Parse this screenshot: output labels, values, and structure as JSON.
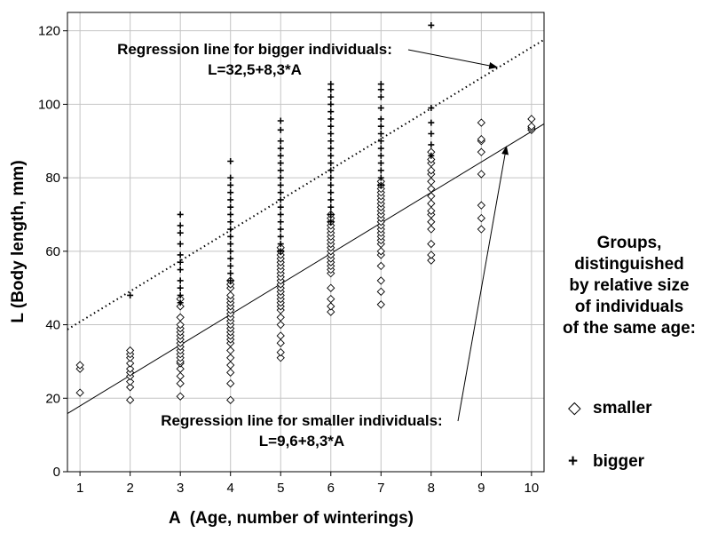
{
  "chart_data": {
    "type": "scatter",
    "xlabel_main": "A",
    "xlabel_rest": "(Age, number of winterings)",
    "ylabel": "L (Body length, mm)",
    "xlim": [
      0.75,
      10.25
    ],
    "ylim": [
      0,
      125
    ],
    "xticks": [
      1,
      2,
      3,
      4,
      5,
      6,
      7,
      8,
      9,
      10
    ],
    "yticks": [
      0,
      20,
      40,
      60,
      80,
      100,
      120
    ],
    "grid": true,
    "legend_placement": "right",
    "series": [
      {
        "name": "smaller",
        "marker": "diamond",
        "points": [
          [
            1,
            21.5
          ],
          [
            1,
            28
          ],
          [
            1,
            29
          ],
          [
            2,
            19.5
          ],
          [
            2,
            23
          ],
          [
            2,
            24.5
          ],
          [
            2,
            26
          ],
          [
            2,
            27
          ],
          [
            2,
            28
          ],
          [
            2,
            29.5
          ],
          [
            2,
            31
          ],
          [
            2,
            32
          ],
          [
            2,
            33
          ],
          [
            3,
            20.5
          ],
          [
            3,
            24
          ],
          [
            3,
            26
          ],
          [
            3,
            28
          ],
          [
            3,
            29.5
          ],
          [
            3,
            30
          ],
          [
            3,
            31
          ],
          [
            3,
            32
          ],
          [
            3,
            33
          ],
          [
            3,
            34
          ],
          [
            3,
            35
          ],
          [
            3,
            36
          ],
          [
            3,
            37
          ],
          [
            3,
            38
          ],
          [
            3,
            39
          ],
          [
            3,
            40
          ],
          [
            3,
            42
          ],
          [
            3,
            45
          ],
          [
            3,
            47
          ],
          [
            4,
            19.5
          ],
          [
            4,
            24
          ],
          [
            4,
            27
          ],
          [
            4,
            29
          ],
          [
            4,
            31
          ],
          [
            4,
            33
          ],
          [
            4,
            35
          ],
          [
            4,
            36
          ],
          [
            4,
            37
          ],
          [
            4,
            38
          ],
          [
            4,
            39
          ],
          [
            4,
            40
          ],
          [
            4,
            41
          ],
          [
            4,
            42
          ],
          [
            4,
            43
          ],
          [
            4,
            44
          ],
          [
            4,
            45
          ],
          [
            4,
            46
          ],
          [
            4,
            47
          ],
          [
            4,
            48
          ],
          [
            4,
            50
          ],
          [
            4,
            51
          ],
          [
            4,
            52
          ],
          [
            5,
            31
          ],
          [
            5,
            32.5
          ],
          [
            5,
            35
          ],
          [
            5,
            37
          ],
          [
            5,
            40
          ],
          [
            5,
            42
          ],
          [
            5,
            44
          ],
          [
            5,
            45
          ],
          [
            5,
            46
          ],
          [
            5,
            47
          ],
          [
            5,
            48
          ],
          [
            5,
            49
          ],
          [
            5,
            50
          ],
          [
            5,
            51
          ],
          [
            5,
            52
          ],
          [
            5,
            53
          ],
          [
            5,
            54
          ],
          [
            5,
            55
          ],
          [
            5,
            56
          ],
          [
            5,
            57
          ],
          [
            5,
            58
          ],
          [
            5,
            59
          ],
          [
            5,
            60
          ],
          [
            5,
            61
          ],
          [
            6,
            43.5
          ],
          [
            6,
            45
          ],
          [
            6,
            47
          ],
          [
            6,
            50
          ],
          [
            6,
            54
          ],
          [
            6,
            55
          ],
          [
            6,
            56
          ],
          [
            6,
            57
          ],
          [
            6,
            58
          ],
          [
            6,
            59
          ],
          [
            6,
            60
          ],
          [
            6,
            61
          ],
          [
            6,
            62
          ],
          [
            6,
            63
          ],
          [
            6,
            64
          ],
          [
            6,
            65
          ],
          [
            6,
            66
          ],
          [
            6,
            67
          ],
          [
            6,
            68
          ],
          [
            6,
            69
          ],
          [
            6,
            70
          ],
          [
            7,
            45.5
          ],
          [
            7,
            49
          ],
          [
            7,
            52
          ],
          [
            7,
            56
          ],
          [
            7,
            59
          ],
          [
            7,
            60
          ],
          [
            7,
            62
          ],
          [
            7,
            63
          ],
          [
            7,
            64
          ],
          [
            7,
            65
          ],
          [
            7,
            66
          ],
          [
            7,
            67
          ],
          [
            7,
            68
          ],
          [
            7,
            69
          ],
          [
            7,
            70
          ],
          [
            7,
            71
          ],
          [
            7,
            72
          ],
          [
            7,
            73
          ],
          [
            7,
            74
          ],
          [
            7,
            75
          ],
          [
            7,
            76
          ],
          [
            7,
            77
          ],
          [
            7,
            78
          ],
          [
            7,
            79
          ],
          [
            8,
            57.5
          ],
          [
            8,
            59
          ],
          [
            8,
            62
          ],
          [
            8,
            66
          ],
          [
            8,
            68
          ],
          [
            8,
            70
          ],
          [
            8,
            71
          ],
          [
            8,
            73
          ],
          [
            8,
            75
          ],
          [
            8,
            77
          ],
          [
            8,
            79
          ],
          [
            8,
            81
          ],
          [
            8,
            82
          ],
          [
            8,
            84
          ],
          [
            8,
            85
          ],
          [
            8,
            87
          ],
          [
            9,
            66
          ],
          [
            9,
            69
          ],
          [
            9,
            72.5
          ],
          [
            9,
            81
          ],
          [
            9,
            87
          ],
          [
            9,
            90
          ],
          [
            9,
            90.5
          ],
          [
            9,
            95
          ],
          [
            10,
            93
          ],
          [
            10,
            93.5
          ],
          [
            10,
            94
          ],
          [
            10,
            96
          ]
        ]
      },
      {
        "name": "bigger",
        "marker": "plus",
        "points": [
          [
            2,
            48
          ],
          [
            3,
            46
          ],
          [
            3,
            48
          ],
          [
            3,
            50
          ],
          [
            3,
            52
          ],
          [
            3,
            55
          ],
          [
            3,
            57
          ],
          [
            3,
            59
          ],
          [
            3,
            62
          ],
          [
            3,
            65
          ],
          [
            3,
            67
          ],
          [
            3,
            70
          ],
          [
            4,
            52
          ],
          [
            4,
            54
          ],
          [
            4,
            56
          ],
          [
            4,
            58
          ],
          [
            4,
            60
          ],
          [
            4,
            62
          ],
          [
            4,
            64
          ],
          [
            4,
            66
          ],
          [
            4,
            68
          ],
          [
            4,
            70
          ],
          [
            4,
            72
          ],
          [
            4,
            74
          ],
          [
            4,
            76
          ],
          [
            4,
            78
          ],
          [
            4,
            80
          ],
          [
            4,
            84.5
          ],
          [
            5,
            60
          ],
          [
            5,
            62
          ],
          [
            5,
            64
          ],
          [
            5,
            66
          ],
          [
            5,
            68
          ],
          [
            5,
            70
          ],
          [
            5,
            72
          ],
          [
            5,
            74
          ],
          [
            5,
            76
          ],
          [
            5,
            78
          ],
          [
            5,
            80
          ],
          [
            5,
            82
          ],
          [
            5,
            84
          ],
          [
            5,
            86
          ],
          [
            5,
            88
          ],
          [
            5,
            90
          ],
          [
            5,
            93
          ],
          [
            5,
            95.5
          ],
          [
            6,
            68
          ],
          [
            6,
            70
          ],
          [
            6,
            72
          ],
          [
            6,
            74
          ],
          [
            6,
            76
          ],
          [
            6,
            78
          ],
          [
            6,
            80
          ],
          [
            6,
            82
          ],
          [
            6,
            84
          ],
          [
            6,
            86
          ],
          [
            6,
            88
          ],
          [
            6,
            90
          ],
          [
            6,
            92
          ],
          [
            6,
            94
          ],
          [
            6,
            96
          ],
          [
            6,
            98
          ],
          [
            6,
            100
          ],
          [
            6,
            102
          ],
          [
            6,
            104
          ],
          [
            6,
            105.5
          ],
          [
            7,
            78
          ],
          [
            7,
            80
          ],
          [
            7,
            82
          ],
          [
            7,
            84
          ],
          [
            7,
            86
          ],
          [
            7,
            88
          ],
          [
            7,
            90
          ],
          [
            7,
            92
          ],
          [
            7,
            94
          ],
          [
            7,
            96
          ],
          [
            7,
            99
          ],
          [
            7,
            102
          ],
          [
            7,
            104
          ],
          [
            7,
            105.5
          ],
          [
            8,
            86
          ],
          [
            8,
            89
          ],
          [
            8,
            92
          ],
          [
            8,
            95
          ],
          [
            8,
            99
          ],
          [
            8,
            121.5
          ]
        ]
      }
    ],
    "regression_lines": [
      {
        "group": "bigger",
        "intercept": 32.5,
        "slope": 8.3,
        "style": "dotted"
      },
      {
        "group": "smaller",
        "intercept": 9.6,
        "slope": 8.3,
        "style": "solid"
      }
    ],
    "annotations": [
      {
        "line1": "Regression line for bigger individuals:",
        "line2": "L=32,5+8,3*A",
        "arrow_target": [
          9.35,
          110.1
        ]
      },
      {
        "line1": "Regression line for smaller individuals:",
        "line2": "L=9,6+8,3*A",
        "arrow_target": [
          9.5,
          88.5
        ]
      }
    ]
  },
  "legend": {
    "title_lines": [
      "Groups,",
      "distinguished",
      "by relative size",
      "of individuals",
      "of the same age:"
    ],
    "items": [
      {
        "symbol": "◇",
        "label": "smaller"
      },
      {
        "symbol": "+",
        "label": "bigger"
      }
    ]
  }
}
